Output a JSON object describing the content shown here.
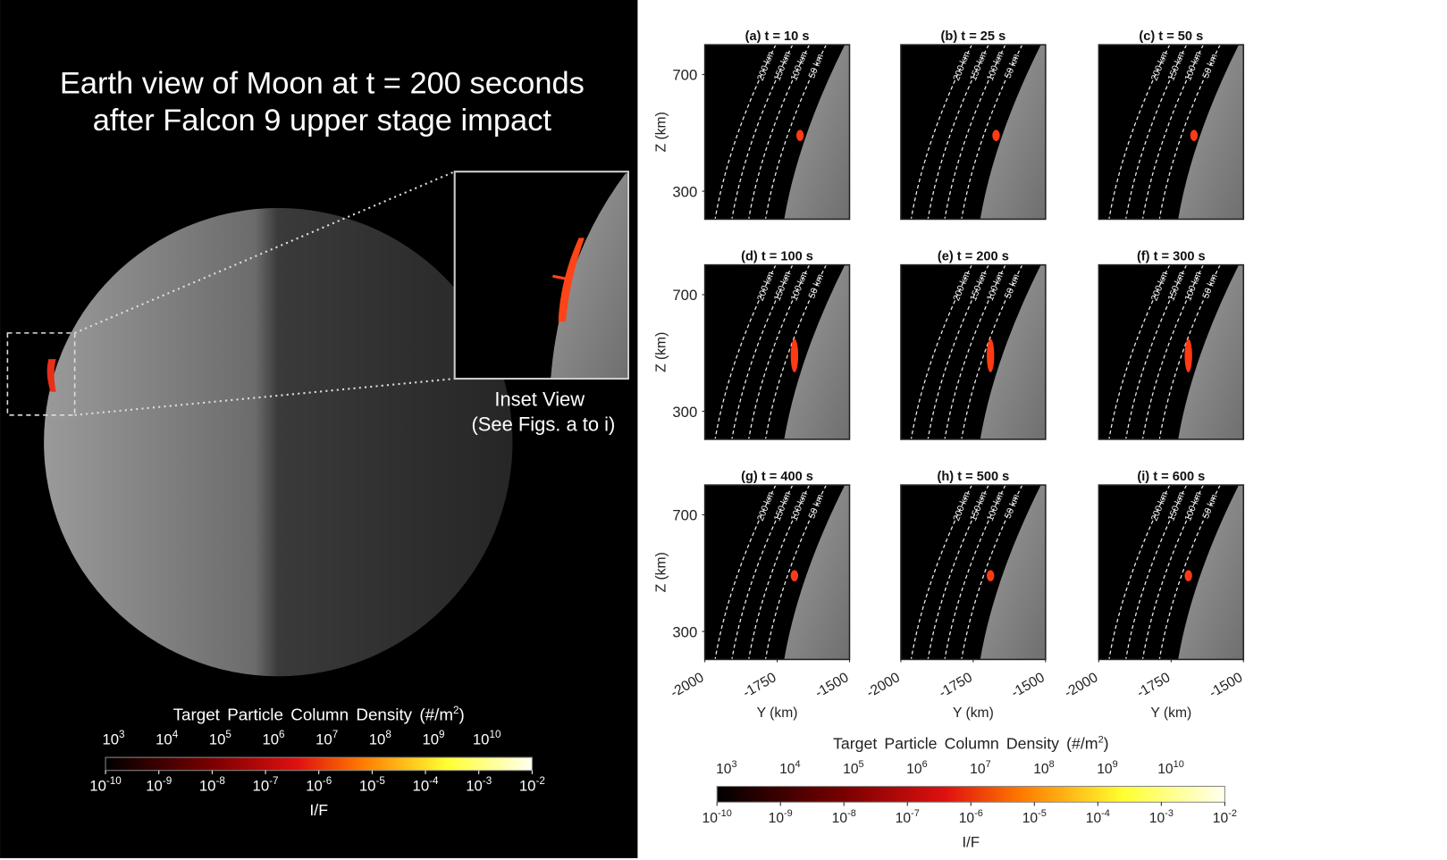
{
  "left_panel": {
    "title_lines": [
      "Earth view of Moon at t = 200 seconds",
      "after Falcon 9 upper stage impact"
    ],
    "inset_caption": [
      "Inset View",
      "(See Figs. a to i)"
    ],
    "colorbar": {
      "title": "Target Particle Column Density (#/m",
      "title_sup": 2,
      "title_end": ")",
      "top_ticks": [
        {
          "base": 10,
          "exponent": 3
        },
        {
          "base": 10,
          "exponent": 4
        },
        {
          "base": 10,
          "exponent": 5
        },
        {
          "base": 10,
          "exponent": 6
        },
        {
          "base": 10,
          "exponent": 7
        },
        {
          "base": 10,
          "exponent": 8
        },
        {
          "base": 10,
          "exponent": 9
        },
        {
          "base": 10,
          "exponent": 10
        }
      ],
      "bottom_ticks": [
        {
          "base": 10,
          "exponent": -10
        },
        {
          "base": 10,
          "exponent": -9
        },
        {
          "base": 10,
          "exponent": -8
        },
        {
          "base": 10,
          "exponent": -7
        },
        {
          "base": 10,
          "exponent": -6
        },
        {
          "base": 10,
          "exponent": -5
        },
        {
          "base": 10,
          "exponent": -4
        },
        {
          "base": 10,
          "exponent": -3
        },
        {
          "base": 10,
          "exponent": -2
        }
      ],
      "bottom_label": "I/F"
    }
  },
  "panels": [
    {
      "title": "(a)  t = 10 s"
    },
    {
      "title": "(b)  t = 25 s"
    },
    {
      "title": "(c)  t = 50 s"
    },
    {
      "title": "(d)  t = 100 s"
    },
    {
      "title": "(e)  t = 200 s"
    },
    {
      "title": "(f)  t = 300 s"
    },
    {
      "title": "(g)  t = 400 s"
    },
    {
      "title": "(h)  t = 500 s"
    },
    {
      "title": "(i)  t = 600 s"
    }
  ],
  "z_axis": {
    "label": "Z (km)",
    "lim": [
      204,
      802
    ],
    "ticks": [
      300,
      700
    ]
  },
  "y_axis": {
    "label": "Y (km)",
    "lim": [
      -2000,
      -1500
    ],
    "ticks": [
      -2000,
      -1750,
      -1500
    ]
  },
  "contour_labels": [
    "200 km",
    "150 km",
    "100 km",
    "50 km"
  ],
  "colorbar": {
    "title": "Target Particle Column Density (#/m",
    "title_sup": 2,
    "title_end": ")",
    "top_ticks": [
      {
        "base": 10,
        "exponent": 3
      },
      {
        "base": 10,
        "exponent": 4
      },
      {
        "base": 10,
        "exponent": 5
      },
      {
        "base": 10,
        "exponent": 6
      },
      {
        "base": 10,
        "exponent": 7
      },
      {
        "base": 10,
        "exponent": 8
      },
      {
        "base": 10,
        "exponent": 9
      },
      {
        "base": 10,
        "exponent": 10
      }
    ],
    "bottom_ticks": [
      {
        "base": 10,
        "exponent": -10
      },
      {
        "base": 10,
        "exponent": -9
      },
      {
        "base": 10,
        "exponent": -8
      },
      {
        "base": 10,
        "exponent": -7
      },
      {
        "base": 10,
        "exponent": -6
      },
      {
        "base": 10,
        "exponent": -5
      },
      {
        "base": 10,
        "exponent": -4
      },
      {
        "base": 10,
        "exponent": -3
      },
      {
        "base": 10,
        "exponent": -2
      }
    ],
    "bottom_label": "I/F"
  }
}
